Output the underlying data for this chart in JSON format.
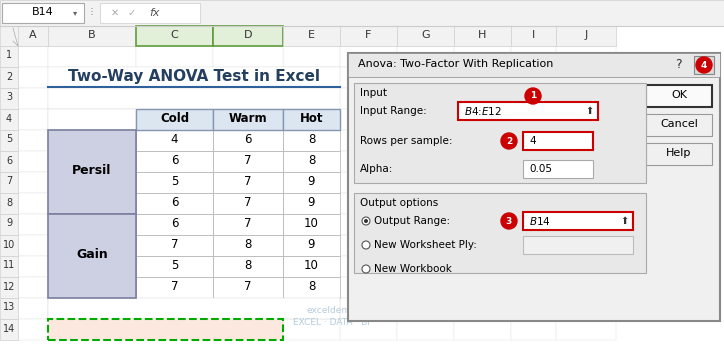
{
  "title": "Two-Way ANOVA Test in Excel",
  "cell_ref": "B14",
  "col_headers": [
    "Cold",
    "Warm",
    "Hot"
  ],
  "row_groups": [
    {
      "label": "Persil",
      "rows": [
        [
          4,
          6,
          8
        ],
        [
          6,
          7,
          8
        ],
        [
          5,
          7,
          9
        ],
        [
          6,
          7,
          9
        ]
      ]
    },
    {
      "label": "Gain",
      "rows": [
        [
          6,
          7,
          10
        ],
        [
          7,
          8,
          9
        ],
        [
          5,
          8,
          10
        ],
        [
          7,
          7,
          8
        ]
      ]
    }
  ],
  "dialog_title": "Anova: Two-Factor With Replication",
  "input_range_label": "Input Range:",
  "input_range_value": "$B$4:$E$12",
  "rows_per_sample_label": "Rows per sample:",
  "rows_per_sample_value": "4",
  "alpha_label": "Alpha:",
  "alpha_value": "0.05",
  "output_options_label": "Output options",
  "output_range_label": "Output Range:",
  "output_range_value": "$B$14",
  "new_worksheet_label": "New Worksheet Ply:",
  "new_workbook_label": "New Workbook",
  "ok_label": "OK",
  "cancel_label": "Cancel",
  "help_label": "Help",
  "bg_color": "#FFFFFF",
  "formula_bar_bg": "#F2F2F2",
  "col_header_bg": "#F2F2F2",
  "col_header_selected_bg": "#E2EFD9",
  "row_header_bg": "#F2F2F2",
  "cell_border": "#D0D0D0",
  "row_label_bg": "#CDD0E3",
  "row_label_border": "#7B7F9E",
  "col_data_header_bg": "#DCE6F1",
  "col_data_header_border": "#8496B0",
  "dialog_bg": "#F0F0F0",
  "dialog_section_bg": "#E4E4E4",
  "dialog_border": "#999999",
  "input_box_bg": "#FFFFFF",
  "red_border": "#CC0000",
  "ok_button_bg": "#F8F8F8",
  "btn_bg": "#F0F0F0",
  "circle_color": "#CC0000",
  "watermark_color": "#A8C4D8",
  "dashed_cell_bg": "#FDE8E0",
  "dashed_cell_border": "#00AA00",
  "title_color": "#243F60",
  "title_underline": "#2E6099"
}
